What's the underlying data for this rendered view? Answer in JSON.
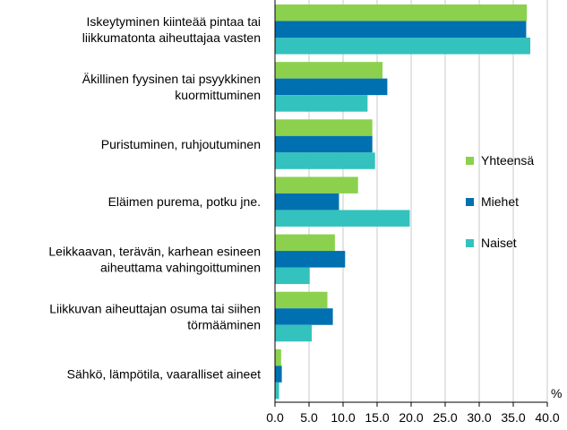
{
  "chart_data": {
    "type": "bar",
    "orientation": "horizontal",
    "categories": [
      [
        "Iskeytyminen kiinteää pintaa tai",
        "liikkumatonta aiheuttajaa vasten"
      ],
      [
        "Äkillinen fyysinen tai psyykkinen",
        "kuormittuminen"
      ],
      [
        "Puristuminen, ruhjoutuminen"
      ],
      [
        "Eläimen purema, potku jne."
      ],
      [
        "Leikkaavan, terävän, karhean esineen",
        "aiheuttama vahingoittuminen"
      ],
      [
        "Liikkuvan aiheuttajan osuma tai siihen",
        "törmääminen"
      ],
      [
        "Sähkö, lämpötila, vaaralliset aineet"
      ]
    ],
    "series": [
      {
        "name": "Yhteensä",
        "color": "#8cd14e",
        "values": [
          37.0,
          15.8,
          14.3,
          12.2,
          8.8,
          7.7,
          0.9
        ]
      },
      {
        "name": "Miehet",
        "color": "#0070b0",
        "values": [
          36.9,
          16.5,
          14.3,
          9.4,
          10.3,
          8.5,
          1.0
        ]
      },
      {
        "name": "Naiset",
        "color": "#33c2bd",
        "values": [
          37.5,
          13.6,
          14.7,
          19.8,
          5.1,
          5.4,
          0.6
        ]
      }
    ],
    "xlim": [
      0,
      40
    ],
    "xticks": [
      "0.0",
      "5.0",
      "10.0",
      "15.0",
      "20.0",
      "25.0",
      "30.0",
      "35.0",
      "40.0"
    ],
    "xunit": "%",
    "grid": true,
    "legend_position": "right"
  }
}
